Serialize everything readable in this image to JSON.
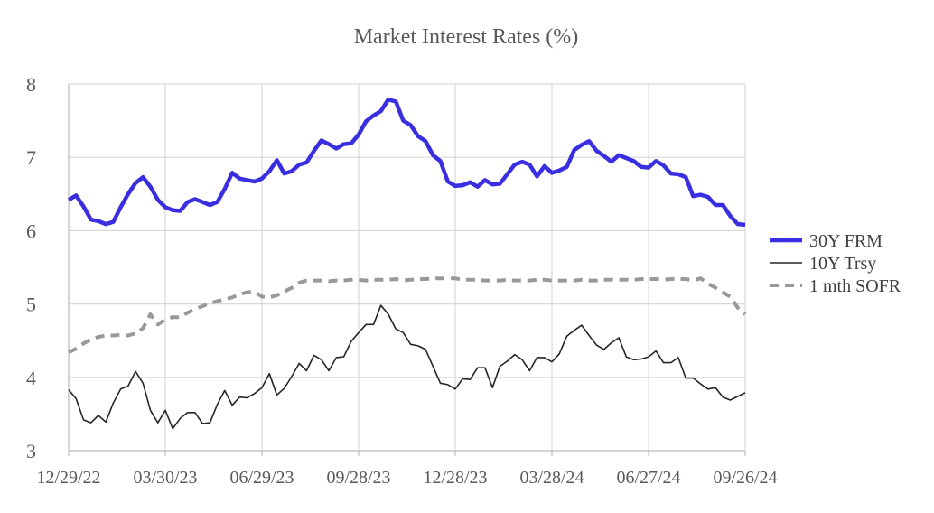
{
  "chart_data": {
    "type": "line",
    "title": "Market Interest Rates (%)",
    "xlabel": "",
    "ylabel": "",
    "ylim": [
      3,
      8
    ],
    "yticks": [
      3,
      4,
      5,
      6,
      7,
      8
    ],
    "grid": true,
    "legend_position": "right",
    "x_tick_labels": [
      "12/29/22",
      "03/30/23",
      "06/29/23",
      "09/28/23",
      "12/28/23",
      "03/28/24",
      "06/27/24",
      "09/26/24"
    ],
    "x_start": "2022-12-29",
    "x_step_days": 7,
    "series": [
      {
        "name": "30Y FRM",
        "style": "thick-solid",
        "color": "#3a2fe0",
        "values": [
          6.42,
          6.48,
          6.33,
          6.15,
          6.13,
          6.09,
          6.12,
          6.32,
          6.5,
          6.65,
          6.73,
          6.6,
          6.42,
          6.32,
          6.28,
          6.27,
          6.39,
          6.43,
          6.39,
          6.35,
          6.39,
          6.57,
          6.79,
          6.71,
          6.69,
          6.67,
          6.71,
          6.81,
          6.96,
          6.78,
          6.81,
          6.9,
          6.93,
          7.09,
          7.23,
          7.18,
          7.12,
          7.18,
          7.19,
          7.31,
          7.49,
          7.57,
          7.63,
          7.79,
          7.76,
          7.5,
          7.44,
          7.29,
          7.22,
          7.03,
          6.95,
          6.67,
          6.61,
          6.62,
          6.66,
          6.6,
          6.69,
          6.63,
          6.64,
          6.77,
          6.9,
          6.94,
          6.9,
          6.74,
          6.88,
          6.79,
          6.82,
          6.87,
          7.1,
          7.17,
          7.22,
          7.09,
          7.02,
          6.94,
          7.03,
          6.99,
          6.95,
          6.87,
          6.86,
          6.95,
          6.89,
          6.78,
          6.77,
          6.73,
          6.47,
          6.49,
          6.46,
          6.35,
          6.35,
          6.2,
          6.09,
          6.08
        ]
      },
      {
        "name": "10Y Trsy",
        "style": "thin-solid",
        "color": "#262626",
        "values": [
          3.83,
          3.71,
          3.42,
          3.38,
          3.48,
          3.39,
          3.65,
          3.84,
          3.88,
          4.08,
          3.92,
          3.55,
          3.38,
          3.55,
          3.3,
          3.44,
          3.52,
          3.52,
          3.37,
          3.38,
          3.63,
          3.82,
          3.62,
          3.73,
          3.72,
          3.78,
          3.86,
          4.05,
          3.76,
          3.85,
          4.01,
          4.19,
          4.09,
          4.3,
          4.24,
          4.09,
          4.27,
          4.28,
          4.49,
          4.61,
          4.72,
          4.72,
          4.98,
          4.86,
          4.66,
          4.61,
          4.45,
          4.43,
          4.38,
          4.15,
          3.92,
          3.9,
          3.84,
          3.98,
          3.97,
          4.13,
          4.13,
          3.86,
          4.15,
          4.22,
          4.31,
          4.24,
          4.09,
          4.27,
          4.27,
          4.21,
          4.32,
          4.56,
          4.64,
          4.71,
          4.57,
          4.44,
          4.38,
          4.47,
          4.54,
          4.28,
          4.24,
          4.25,
          4.28,
          4.36,
          4.2,
          4.2,
          4.27,
          3.99,
          3.99,
          3.91,
          3.84,
          3.86,
          3.73,
          3.69,
          3.74,
          3.79
        ]
      },
      {
        "name": "1 mth SOFR",
        "style": "dashed",
        "color": "#999999",
        "values": [
          4.34,
          4.39,
          4.46,
          4.52,
          4.55,
          4.57,
          4.57,
          4.58,
          4.57,
          4.6,
          4.67,
          4.86,
          4.72,
          4.79,
          4.82,
          4.82,
          4.88,
          4.93,
          4.97,
          5.01,
          5.04,
          5.06,
          5.09,
          5.13,
          5.16,
          5.17,
          5.1,
          5.09,
          5.12,
          5.17,
          5.22,
          5.29,
          5.32,
          5.32,
          5.32,
          5.31,
          5.32,
          5.32,
          5.33,
          5.33,
          5.32,
          5.33,
          5.33,
          5.33,
          5.34,
          5.32,
          5.33,
          5.34,
          5.34,
          5.35,
          5.35,
          5.35,
          5.35,
          5.33,
          5.33,
          5.33,
          5.32,
          5.32,
          5.32,
          5.33,
          5.32,
          5.32,
          5.32,
          5.33,
          5.33,
          5.32,
          5.32,
          5.32,
          5.32,
          5.33,
          5.32,
          5.32,
          5.33,
          5.33,
          5.33,
          5.33,
          5.33,
          5.34,
          5.34,
          5.34,
          5.33,
          5.34,
          5.34,
          5.34,
          5.32,
          5.35,
          5.28,
          5.22,
          5.16,
          5.1,
          4.95,
          4.86
        ]
      }
    ]
  }
}
